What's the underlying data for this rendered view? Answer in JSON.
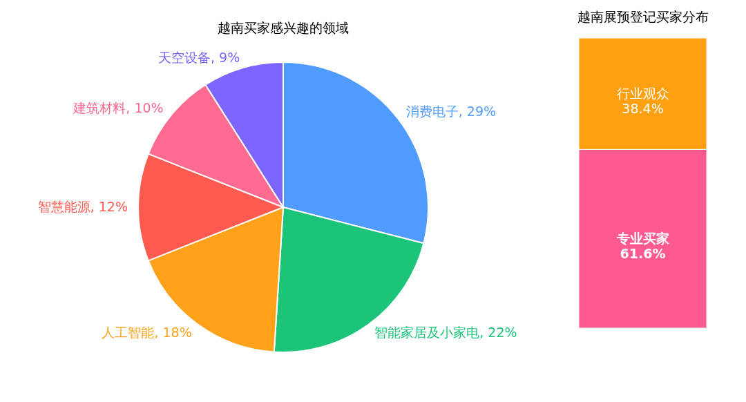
{
  "chart_data": [
    {
      "type": "pie",
      "title": "越南买家感兴趣的领域",
      "categories": [
        "消费电子",
        "智能家居及小家电",
        "人工智能",
        "智慧能源",
        "建筑材料",
        "天空设备"
      ],
      "values": [
        29,
        22,
        18,
        12,
        10,
        9
      ],
      "value_labels": [
        "29%",
        "22%",
        "18%",
        "12%",
        "10%",
        "9%"
      ],
      "colors": [
        "#4f9bff",
        "#1cc47a",
        "#ffa21a",
        "#ff5a4f",
        "#ff6a90",
        "#7d65ff"
      ],
      "legend": false
    },
    {
      "type": "bar",
      "title": "越南展预登记买家分布",
      "stacked": true,
      "categories": [
        null
      ],
      "series": [
        {
          "name": "专业买家",
          "color": "#ff5a8f",
          "values": [
            61.6
          ],
          "value_labels": [
            "61.6%"
          ]
        },
        {
          "name": "行业观众",
          "color": "#ffa010",
          "values": [
            38.4
          ],
          "value_labels": [
            "38.4%"
          ]
        }
      ]
    }
  ]
}
